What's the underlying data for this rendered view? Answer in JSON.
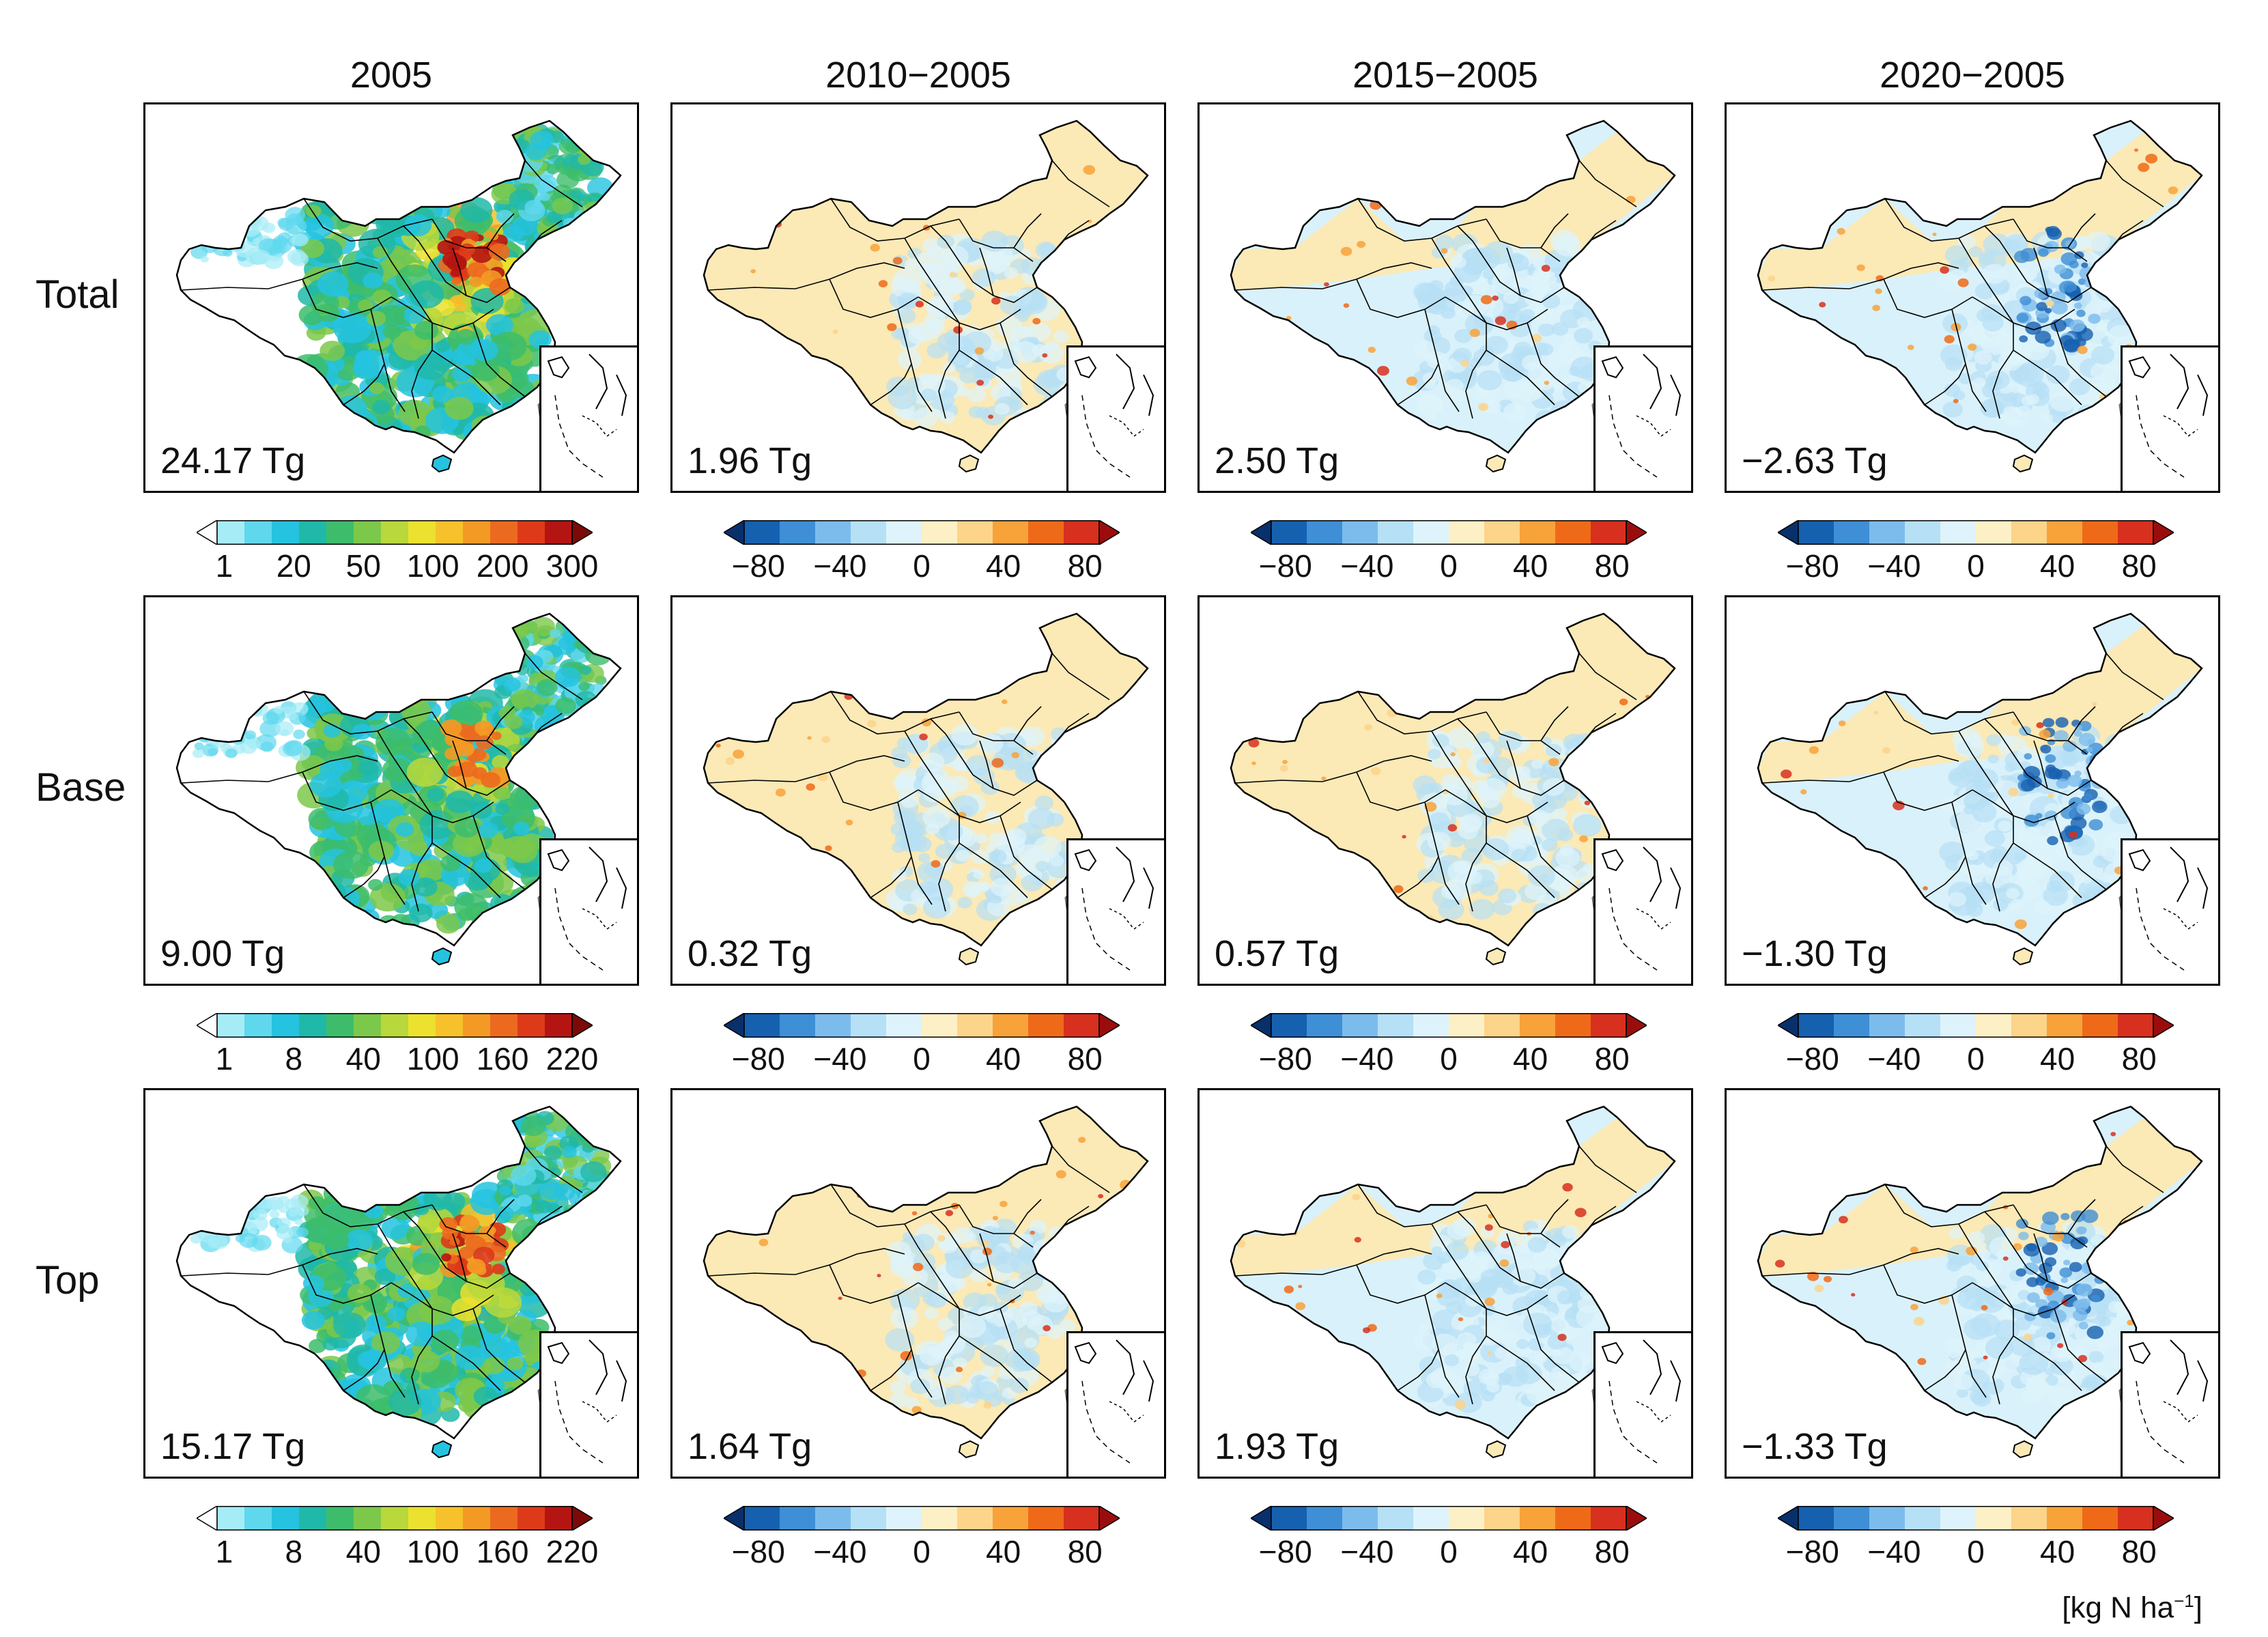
{
  "columns": [
    "2005",
    "2010−2005",
    "2015−2005",
    "2020−2005"
  ],
  "rows": [
    {
      "label": "Total",
      "totals": [
        "24.17 Tg",
        "1.96 Tg",
        "2.50 Tg",
        "−2.63 Tg"
      ],
      "abs_ticks": [
        "1",
        "20",
        "50",
        "100",
        "200",
        "300"
      ]
    },
    {
      "label": "Base",
      "totals": [
        "9.00 Tg",
        "0.32 Tg",
        "0.57 Tg",
        "−1.30 Tg"
      ],
      "abs_ticks": [
        "1",
        "8",
        "40",
        "100",
        "160",
        "220"
      ]
    },
    {
      "label": "Top",
      "totals": [
        "15.17 Tg",
        "1.64 Tg",
        "1.93 Tg",
        "−1.33 Tg"
      ],
      "abs_ticks": [
        "1",
        "8",
        "40",
        "100",
        "160",
        "220"
      ]
    }
  ],
  "diff_ticks": [
    "−80",
    "−40",
    "0",
    "40",
    "80"
  ],
  "unit": {
    "main": "[kg N ha",
    "sup": "−1",
    "close": "]"
  },
  "colors": {
    "abs_scale": [
      "#ffffff",
      "#a6ecf7",
      "#5fd8ee",
      "#25c3e0",
      "#20b8a8",
      "#3dbd6b",
      "#7cc84a",
      "#b8d83b",
      "#ece12e",
      "#f7c12b",
      "#f39a25",
      "#ec6a1f",
      "#dd3a1a",
      "#b51512",
      "#7c0a08"
    ],
    "diff_scale": [
      "#08306b",
      "#1660b0",
      "#3e8fd6",
      "#7cbcec",
      "#b6e0f5",
      "#def3fb",
      "#fdf0c6",
      "#fcd48a",
      "#f8a23a",
      "#ee6a18",
      "#d7301f",
      "#9b0d0d"
    ],
    "neutral_positive": "#fbe9b6",
    "neutral_negative": "#d9f1fa"
  }
}
